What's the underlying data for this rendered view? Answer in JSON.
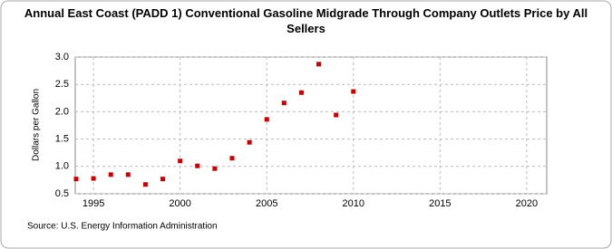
{
  "chart_data": {
    "type": "scatter",
    "title": "Annual East Coast (PADD 1) Conventional Gasoline Midgrade Through Company Outlets Price by All Sellers",
    "y_label": "Dollars per Gallon",
    "source": "Source: U.S. Energy Information Administration",
    "x": [
      1994,
      1995,
      1996,
      1997,
      1998,
      1999,
      2000,
      2001,
      2002,
      2003,
      2004,
      2005,
      2006,
      2007,
      2008,
      2009,
      2010
    ],
    "series": [
      {
        "name": "Price",
        "color": "#cc0000",
        "values": [
          0.77,
          0.78,
          0.85,
          0.85,
          0.67,
          0.77,
          1.1,
          1.01,
          0.96,
          1.15,
          1.44,
          1.86,
          2.16,
          2.35,
          2.87,
          1.94,
          2.37
        ]
      }
    ],
    "xlim": [
      1994,
      2021
    ],
    "xticks": [
      1995,
      2000,
      2005,
      2010,
      2015,
      2020
    ],
    "ylim": [
      0.5,
      3.0
    ],
    "yticks": [
      0.5,
      {
        "value": 1,
        "label": "1.0"
      },
      1.5,
      {
        "value": 2,
        "label": "2.0"
      },
      2.5,
      {
        "value": 3,
        "label": "3.0"
      }
    ],
    "grid": true
  }
}
